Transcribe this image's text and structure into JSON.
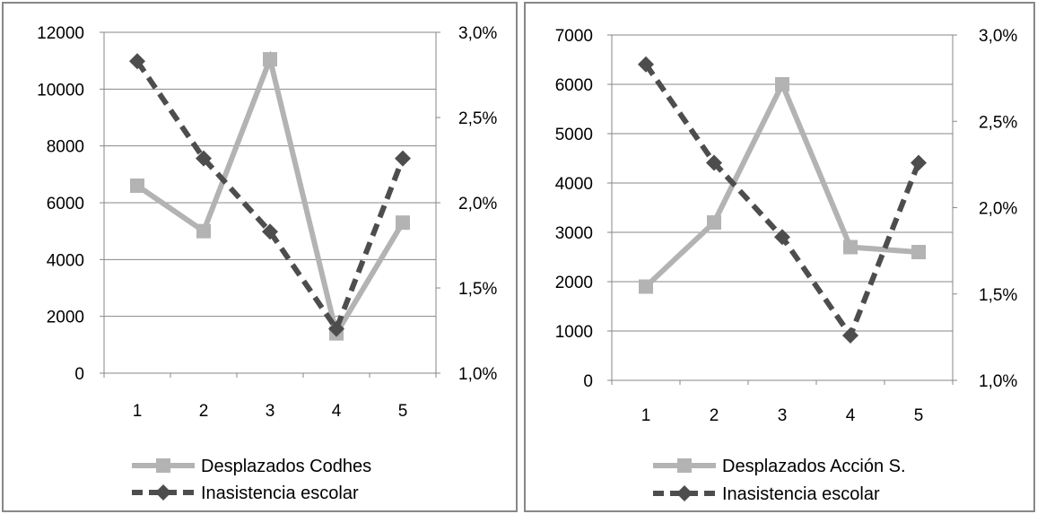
{
  "colors": {
    "desplazados": "#b3b3b3",
    "inasistencia": "#4d4d4d",
    "grid": "#878787",
    "axis": "#878787"
  },
  "chart_data": [
    {
      "type": "line",
      "title": "",
      "categories": [
        "1",
        "2",
        "3",
        "4",
        "5"
      ],
      "y_left": {
        "ylim": [
          0,
          12000
        ],
        "ticks": [
          "0",
          "2000",
          "4000",
          "6000",
          "8000",
          "10000",
          "12000"
        ]
      },
      "y_right": {
        "ylim": [
          0.01,
          0.03
        ],
        "ticks": [
          "1,0%",
          "1,5%",
          "2,0%",
          "2,5%",
          "3,0%"
        ]
      },
      "grid": true,
      "legend_position": "bottom",
      "series": [
        {
          "name": "Desplazados Codhes",
          "axis": "left",
          "marker": "square",
          "style": "solid",
          "values": [
            6600,
            5000,
            11050,
            1400,
            5300
          ]
        },
        {
          "name": "Inasistencia escolar",
          "axis": "right",
          "marker": "diamond",
          "style": "dashed",
          "values": [
            0.0283,
            0.0226,
            0.0183,
            0.0126,
            0.0226
          ]
        }
      ]
    },
    {
      "type": "line",
      "title": "",
      "categories": [
        "1",
        "2",
        "3",
        "4",
        "5"
      ],
      "y_left": {
        "ylim": [
          0,
          7000
        ],
        "ticks": [
          "0",
          "1000",
          "2000",
          "3000",
          "4000",
          "5000",
          "6000",
          "7000"
        ]
      },
      "y_right": {
        "ylim": [
          0.01,
          0.03
        ],
        "ticks": [
          "1,0%",
          "1,5%",
          "2,0%",
          "2,5%",
          "3,0%"
        ]
      },
      "grid": true,
      "legend_position": "bottom",
      "series": [
        {
          "name": "Desplazados Acción S.",
          "axis": "left",
          "marker": "square",
          "style": "solid",
          "values": [
            1900,
            3200,
            6000,
            2700,
            2600
          ]
        },
        {
          "name": "Inasistencia escolar",
          "axis": "right",
          "marker": "diamond",
          "style": "dashed",
          "values": [
            0.0283,
            0.0226,
            0.0183,
            0.0126,
            0.0226
          ]
        }
      ]
    }
  ]
}
